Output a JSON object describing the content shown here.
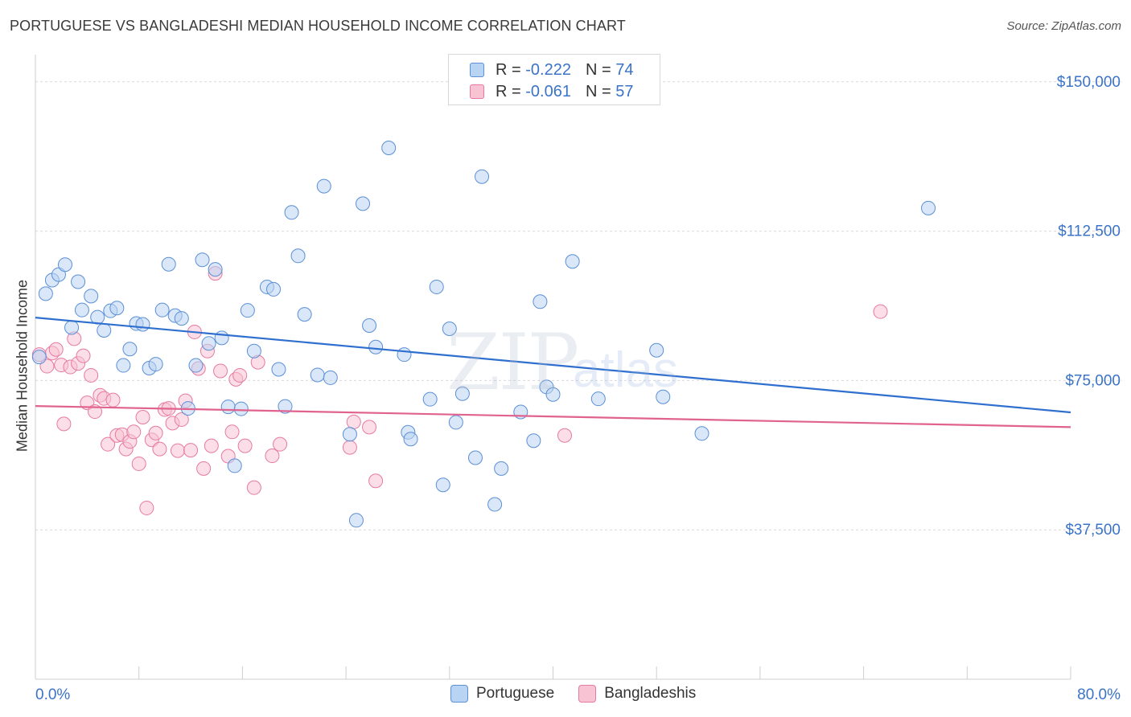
{
  "header": {
    "title": "PORTUGUESE VS BANGLADESHI MEDIAN HOUSEHOLD INCOME CORRELATION CHART",
    "source": "Source: ZipAtlas.com"
  },
  "watermark": {
    "zip": "ZIP",
    "atlas": "atlas"
  },
  "legend_top": [
    {
      "r_label": "R =",
      "r_value": "-0.222",
      "n_label": "N =",
      "n_value": "74"
    },
    {
      "r_label": "R =",
      "r_value": "-0.061",
      "n_label": "N =",
      "n_value": "57"
    }
  ],
  "legend_bottom": [
    "Portuguese",
    "Bangladeshis"
  ],
  "colors": {
    "portuguese_fill": "#b9d3f3",
    "portuguese_stroke": "#5b8fd6",
    "portuguese_line": "#2f6fcf",
    "bangladeshi_fill": "#f8c3d3",
    "bangladeshi_stroke": "#e77aa0",
    "bangladeshi_line": "#e0628e",
    "axis_label": "#3a73c8"
  },
  "chart_data": {
    "type": "scatter",
    "title": "PORTUGUESE VS BANGLADESHI MEDIAN HOUSEHOLD INCOME CORRELATION CHART",
    "xlabel": "",
    "ylabel": "Median Household Income",
    "xlim": [
      0,
      80
    ],
    "ylim": [
      0,
      155000
    ],
    "x_tick_labels": [
      "0.0%",
      "80.0%"
    ],
    "y_ticks": [
      37500,
      75000,
      112500,
      150000
    ],
    "y_tick_labels": [
      "$37,500",
      "$75,000",
      "$112,500",
      "$150,000"
    ],
    "grid": true,
    "legend_position": "top-center",
    "series": [
      {
        "name": "Portuguese",
        "r": -0.222,
        "n": 74,
        "trend": {
          "x": [
            0,
            80
          ],
          "y": [
            90800,
            67000
          ]
        },
        "points": [
          [
            0.3,
            80900
          ],
          [
            0.8,
            96800
          ],
          [
            1.3,
            100200
          ],
          [
            1.8,
            101600
          ],
          [
            2.3,
            104100
          ],
          [
            2.8,
            88300
          ],
          [
            3.3,
            99800
          ],
          [
            3.6,
            92700
          ],
          [
            4.3,
            96200
          ],
          [
            4.8,
            90900
          ],
          [
            5.3,
            87600
          ],
          [
            5.8,
            92500
          ],
          [
            6.3,
            93200
          ],
          [
            6.8,
            78800
          ],
          [
            7.3,
            82900
          ],
          [
            7.8,
            89300
          ],
          [
            8.3,
            89100
          ],
          [
            8.8,
            78100
          ],
          [
            9.3,
            79100
          ],
          [
            9.8,
            92700
          ],
          [
            10.3,
            104200
          ],
          [
            10.8,
            91300
          ],
          [
            11.3,
            90600
          ],
          [
            11.8,
            68000
          ],
          [
            12.4,
            78800
          ],
          [
            12.9,
            105300
          ],
          [
            13.4,
            84300
          ],
          [
            13.9,
            102900
          ],
          [
            14.4,
            85700
          ],
          [
            14.9,
            68400
          ],
          [
            15.4,
            53600
          ],
          [
            15.9,
            67900
          ],
          [
            16.4,
            92600
          ],
          [
            16.9,
            82400
          ],
          [
            17.9,
            98500
          ],
          [
            18.4,
            97900
          ],
          [
            18.8,
            77800
          ],
          [
            19.3,
            68500
          ],
          [
            19.8,
            117200
          ],
          [
            20.3,
            106300
          ],
          [
            20.8,
            91600
          ],
          [
            21.8,
            76400
          ],
          [
            22.3,
            123800
          ],
          [
            22.8,
            75700
          ],
          [
            24.3,
            61500
          ],
          [
            24.8,
            39900
          ],
          [
            25.3,
            119400
          ],
          [
            25.8,
            88800
          ],
          [
            26.3,
            83400
          ],
          [
            27.3,
            133400
          ],
          [
            28.5,
            81500
          ],
          [
            28.8,
            62000
          ],
          [
            29.0,
            60300
          ],
          [
            30.5,
            70300
          ],
          [
            31.0,
            98500
          ],
          [
            31.5,
            48800
          ],
          [
            32.0,
            88000
          ],
          [
            32.5,
            64500
          ],
          [
            33.0,
            71700
          ],
          [
            34.0,
            55600
          ],
          [
            34.5,
            126200
          ],
          [
            35.5,
            43900
          ],
          [
            36.0,
            52900
          ],
          [
            37.5,
            67100
          ],
          [
            38.5,
            59900
          ],
          [
            39.0,
            94800
          ],
          [
            39.5,
            73400
          ],
          [
            40.0,
            71500
          ],
          [
            41.5,
            104900
          ],
          [
            43.5,
            70400
          ],
          [
            48.0,
            82600
          ],
          [
            48.5,
            70900
          ],
          [
            51.5,
            61700
          ],
          [
            69.0,
            118300
          ]
        ]
      },
      {
        "name": "Bangladeshis",
        "r": -0.061,
        "n": 57,
        "trend": {
          "x": [
            0,
            80
          ],
          "y": [
            68600,
            63300
          ]
        },
        "points": [
          [
            0.3,
            81500
          ],
          [
            0.9,
            78600
          ],
          [
            1.3,
            81900
          ],
          [
            1.6,
            82800
          ],
          [
            2.0,
            78900
          ],
          [
            2.2,
            64100
          ],
          [
            2.7,
            78400
          ],
          [
            3.0,
            85500
          ],
          [
            3.3,
            79300
          ],
          [
            3.7,
            81200
          ],
          [
            4.0,
            69400
          ],
          [
            4.3,
            76300
          ],
          [
            4.6,
            67200
          ],
          [
            5.0,
            71300
          ],
          [
            5.3,
            70500
          ],
          [
            5.6,
            59000
          ],
          [
            6.0,
            70100
          ],
          [
            6.3,
            61200
          ],
          [
            6.7,
            61400
          ],
          [
            7.0,
            57800
          ],
          [
            7.3,
            59700
          ],
          [
            7.6,
            62100
          ],
          [
            8.0,
            54100
          ],
          [
            8.3,
            65800
          ],
          [
            8.6,
            43000
          ],
          [
            9.0,
            60100
          ],
          [
            9.3,
            61800
          ],
          [
            9.6,
            57800
          ],
          [
            10.0,
            67700
          ],
          [
            10.3,
            68000
          ],
          [
            10.6,
            64300
          ],
          [
            11.0,
            57400
          ],
          [
            11.3,
            65200
          ],
          [
            11.6,
            69900
          ],
          [
            12.0,
            57500
          ],
          [
            12.3,
            87200
          ],
          [
            12.6,
            78000
          ],
          [
            13.0,
            52900
          ],
          [
            13.3,
            82400
          ],
          [
            13.6,
            58600
          ],
          [
            13.9,
            101900
          ],
          [
            14.3,
            77400
          ],
          [
            14.9,
            56000
          ],
          [
            15.2,
            62100
          ],
          [
            15.5,
            75300
          ],
          [
            15.8,
            76300
          ],
          [
            16.2,
            58600
          ],
          [
            16.9,
            48100
          ],
          [
            17.2,
            79600
          ],
          [
            18.3,
            56100
          ],
          [
            18.9,
            59000
          ],
          [
            24.3,
            58200
          ],
          [
            24.6,
            64600
          ],
          [
            25.8,
            63300
          ],
          [
            26.3,
            49800
          ],
          [
            40.9,
            61200
          ],
          [
            65.3,
            92300
          ]
        ]
      }
    ]
  }
}
